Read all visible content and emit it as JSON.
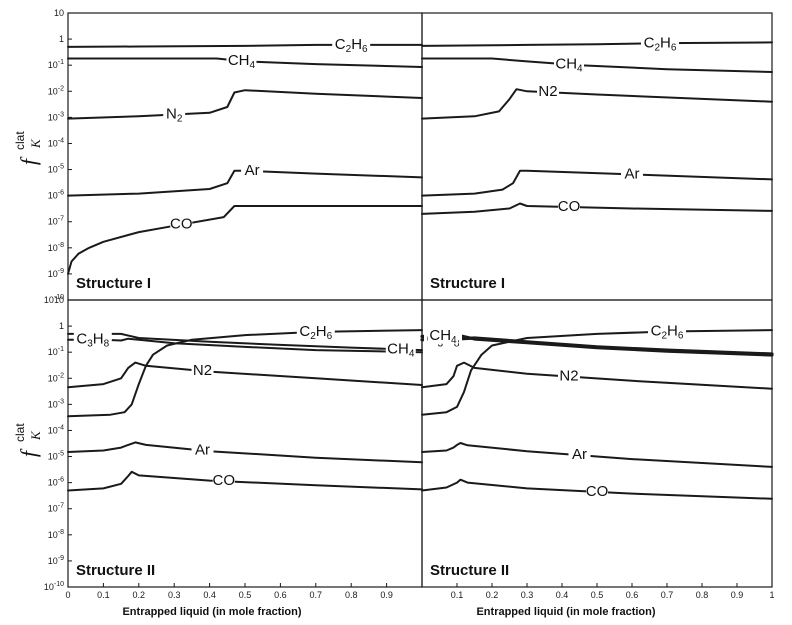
{
  "figure": {
    "xlabel": "Entrapped liquid (in mole fraction)",
    "ylabel": {
      "main": "f",
      "sub": "K",
      "sup": "clat"
    }
  },
  "chart_data": [
    {
      "type": "line",
      "panel": "top-left",
      "title": "Structure I",
      "yscale": "log",
      "ylim": [
        1e-10,
        10
      ],
      "xlim": [
        0,
        1
      ],
      "series": [
        {
          "name": "C2H6",
          "label_parts": [
            "C",
            "2",
            "H",
            "6"
          ],
          "label_x": 0.8,
          "x": [
            0,
            0.2,
            0.5,
            0.7,
            1.0
          ],
          "y": [
            0.5,
            0.52,
            0.55,
            0.6,
            0.6
          ]
        },
        {
          "name": "CH4",
          "label_parts": [
            "CH",
            "4"
          ],
          "label_x": 0.49,
          "x": [
            0,
            0.2,
            0.42,
            0.5,
            0.7,
            1.0
          ],
          "y": [
            0.18,
            0.18,
            0.18,
            0.14,
            0.11,
            0.085
          ]
        },
        {
          "name": "N2",
          "label_parts": [
            "N",
            "2"
          ],
          "label_x": 0.3,
          "x": [
            0,
            0.2,
            0.4,
            0.45,
            0.47,
            0.5,
            0.7,
            1.0
          ],
          "y": [
            0.0009,
            0.0011,
            0.0015,
            0.0025,
            0.009,
            0.011,
            0.008,
            0.0055
          ]
        },
        {
          "name": "Ar",
          "label_x": 0.52,
          "x": [
            0,
            0.2,
            0.4,
            0.45,
            0.47,
            0.5,
            0.7,
            1.0
          ],
          "y": [
            1e-06,
            1.2e-06,
            1.8e-06,
            3e-06,
            9e-06,
            9e-06,
            7e-06,
            5e-06
          ]
        },
        {
          "name": "CO",
          "label_x": 0.32,
          "x": [
            0,
            0.01,
            0.03,
            0.06,
            0.1,
            0.2,
            0.3,
            0.44,
            0.47,
            0.5,
            0.7,
            1.0
          ],
          "y": [
            1e-09,
            3e-09,
            6e-09,
            1e-08,
            1.7e-08,
            4e-08,
            7e-08,
            1.5e-07,
            4e-07,
            4e-07,
            4e-07,
            4e-07
          ]
        }
      ]
    },
    {
      "type": "line",
      "panel": "top-right",
      "title": "Structure I",
      "yscale": "log",
      "ylim": [
        1e-10,
        10
      ],
      "xlim": [
        0,
        1
      ],
      "series": [
        {
          "name": "C2H6",
          "label_parts": [
            "C",
            "2",
            "H",
            "6"
          ],
          "label_x": 0.68,
          "x": [
            0,
            0.3,
            0.5,
            0.7,
            1.0
          ],
          "y": [
            0.55,
            0.6,
            0.63,
            0.7,
            0.75
          ]
        },
        {
          "name": "CH4",
          "label_parts": [
            "CH",
            "4"
          ],
          "label_x": 0.42,
          "x": [
            0,
            0.2,
            0.3,
            0.45,
            0.7,
            1.0
          ],
          "y": [
            0.18,
            0.18,
            0.14,
            0.1,
            0.07,
            0.055
          ]
        },
        {
          "name": "N2",
          "label_x": 0.36,
          "x": [
            0,
            0.15,
            0.22,
            0.25,
            0.27,
            0.3,
            0.5,
            1.0
          ],
          "y": [
            0.0009,
            0.0011,
            0.0017,
            0.005,
            0.012,
            0.01,
            0.0075,
            0.004
          ]
        },
        {
          "name": "Ar",
          "label_x": 0.6,
          "x": [
            0,
            0.15,
            0.23,
            0.26,
            0.28,
            0.3,
            0.6,
            1.0
          ],
          "y": [
            1e-06,
            1.2e-06,
            1.7e-06,
            3e-06,
            9e-06,
            9e-06,
            6.5e-06,
            4.2e-06
          ]
        },
        {
          "name": "CO",
          "label_x": 0.42,
          "x": [
            0,
            0.15,
            0.25,
            0.28,
            0.3,
            0.6,
            1.0
          ],
          "y": [
            2e-07,
            2.4e-07,
            3.2e-07,
            5e-07,
            4e-07,
            3.2e-07,
            2.6e-07
          ]
        }
      ]
    },
    {
      "type": "line",
      "panel": "bottom-left",
      "title": "Structure II",
      "yscale": "log",
      "ylim": [
        1e-10,
        10
      ],
      "xlim": [
        0,
        1
      ],
      "xlabel": "Entrapped liquid (in mole fraction)",
      "xticks": [
        "0",
        "0.1",
        "0.2",
        "0.3",
        "0.4",
        "0.5",
        "0.6",
        "0.7",
        "0.8",
        "0.9"
      ],
      "series": [
        {
          "name": "C2H6",
          "label_parts": [
            "C",
            "2",
            "H",
            "6"
          ],
          "label_x": 0.7,
          "x": [
            0,
            0.12,
            0.16,
            0.18,
            0.2,
            0.22,
            0.24,
            0.28,
            0.35,
            0.5,
            0.7,
            1.0
          ],
          "y": [
            0.00035,
            0.0004,
            0.0005,
            0.001,
            0.006,
            0.03,
            0.08,
            0.18,
            0.3,
            0.45,
            0.6,
            0.7
          ]
        },
        {
          "name": "C3H8",
          "label_parts": [
            "C",
            "3",
            "H",
            "8"
          ],
          "label_x": 0.07,
          "x": [
            0,
            0.1,
            0.15,
            0.17,
            0.2,
            0.3,
            0.5,
            0.7,
            1.0
          ],
          "y": [
            0.3,
            0.3,
            0.28,
            0.33,
            0.3,
            0.22,
            0.16,
            0.12,
            0.1
          ]
        },
        {
          "name": "CH4",
          "label_parts": [
            "CH",
            "4"
          ],
          "label_x": 0.94,
          "x": [
            0,
            0.15,
            0.2,
            0.4,
            0.6,
            0.8,
            1.0
          ],
          "y": [
            0.5,
            0.5,
            0.35,
            0.25,
            0.19,
            0.15,
            0.12
          ]
        },
        {
          "name": "N2",
          "label_x": 0.38,
          "x": [
            0,
            0.1,
            0.15,
            0.17,
            0.19,
            0.22,
            0.4,
            0.7,
            1.0
          ],
          "y": [
            0.0045,
            0.006,
            0.01,
            0.025,
            0.04,
            0.03,
            0.018,
            0.01,
            0.0055
          ]
        },
        {
          "name": "Ar",
          "label_x": 0.38,
          "x": [
            0,
            0.1,
            0.15,
            0.17,
            0.19,
            0.22,
            0.4,
            0.7,
            1.0
          ],
          "y": [
            1.5e-05,
            1.7e-05,
            2.2e-05,
            2.8e-05,
            3.5e-05,
            2.8e-05,
            1.6e-05,
            9e-06,
            6e-06
          ]
        },
        {
          "name": "CO",
          "label_x": 0.44,
          "x": [
            0,
            0.1,
            0.15,
            0.17,
            0.18,
            0.2,
            0.4,
            0.7,
            1.0
          ],
          "y": [
            5e-07,
            6e-07,
            9e-07,
            1.8e-06,
            2.6e-06,
            1.9e-06,
            1.2e-06,
            8e-07,
            5.5e-07
          ]
        }
      ]
    },
    {
      "type": "line",
      "panel": "bottom-right",
      "title": "Structure II",
      "yscale": "log",
      "ylim": [
        1e-10,
        10
      ],
      "xlim": [
        0,
        1
      ],
      "xlabel": "Entrapped liquid (in mole fraction)",
      "xticks": [
        "0.1",
        "0.2",
        "0.3",
        "0.4",
        "0.5",
        "0.6",
        "0.7",
        "0.8",
        "0.9",
        "1"
      ],
      "series": [
        {
          "name": "C2H6",
          "label_parts": [
            "C",
            "2",
            "H",
            "6"
          ],
          "label_x": 0.7,
          "x": [
            0,
            0.07,
            0.1,
            0.12,
            0.14,
            0.17,
            0.2,
            0.3,
            0.5,
            0.7,
            1.0
          ],
          "y": [
            0.0004,
            0.0005,
            0.0008,
            0.003,
            0.02,
            0.08,
            0.18,
            0.35,
            0.5,
            0.62,
            0.7
          ]
        },
        {
          "name": "C3H8",
          "label_parts": [
            "C",
            "3",
            "H",
            "8"
          ],
          "label_x": 0.06,
          "x": [
            0,
            0.05,
            0.1,
            0.15,
            0.3,
            0.5,
            0.7,
            1.0
          ],
          "y": [
            0.3,
            0.3,
            0.32,
            0.35,
            0.25,
            0.16,
            0.12,
            0.085
          ]
        },
        {
          "name": "CH4",
          "label_parts": [
            "CH",
            "4"
          ],
          "label_x": 0.06,
          "x": [
            0,
            0.05,
            0.1,
            0.15,
            0.3,
            0.5,
            0.7,
            1.0
          ],
          "y": [
            0.4,
            0.42,
            0.45,
            0.32,
            0.23,
            0.15,
            0.11,
            0.078
          ]
        },
        {
          "name": "N2",
          "label_x": 0.42,
          "x": [
            0,
            0.07,
            0.09,
            0.1,
            0.12,
            0.15,
            0.3,
            0.6,
            1.0
          ],
          "y": [
            0.0045,
            0.006,
            0.012,
            0.03,
            0.04,
            0.025,
            0.015,
            0.008,
            0.004
          ]
        },
        {
          "name": "Ar",
          "label_x": 0.45,
          "x": [
            0,
            0.07,
            0.09,
            0.1,
            0.11,
            0.13,
            0.3,
            0.6,
            1.0
          ],
          "y": [
            1.5e-05,
            1.7e-05,
            2.2e-05,
            2.8e-05,
            3.3e-05,
            2.7e-05,
            1.6e-05,
            8e-06,
            4e-06
          ]
        },
        {
          "name": "CO",
          "label_x": 0.5,
          "x": [
            0,
            0.07,
            0.1,
            0.11,
            0.13,
            0.3,
            0.6,
            1.0
          ],
          "y": [
            5e-07,
            6.5e-07,
            1e-06,
            1.3e-06,
            1e-06,
            6e-07,
            3.8e-07,
            2.4e-07
          ]
        }
      ]
    }
  ],
  "y_ticks": [
    "10",
    "1",
    "10-1",
    "10-2",
    "10-3",
    "10-4",
    "10-5",
    "10-6",
    "10-7",
    "10-8",
    "10-9",
    "10-10"
  ]
}
